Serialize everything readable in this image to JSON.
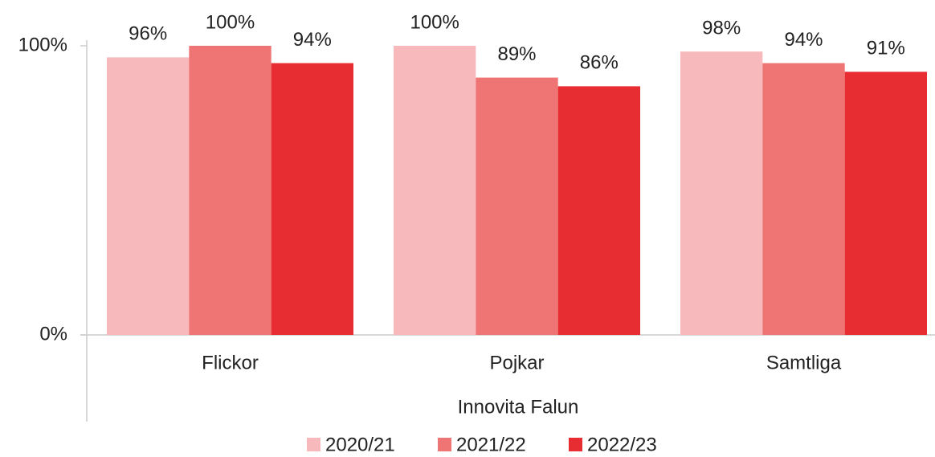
{
  "chart_data": {
    "type": "bar",
    "categories": [
      "Flickor",
      "Pojkar",
      "Samtliga"
    ],
    "xlabel": "Innovita Falun",
    "series": [
      {
        "name": "2020/21",
        "color": "#f7b9bb",
        "values": [
          96,
          100,
          98
        ],
        "value_labels": [
          "96%",
          "100%",
          "98%"
        ]
      },
      {
        "name": "2021/22",
        "color": "#ef7474",
        "values": [
          100,
          89,
          94
        ],
        "value_labels": [
          "100%",
          "89%",
          "94%"
        ]
      },
      {
        "name": "2022/23",
        "color": "#e72d31",
        "values": [
          94,
          86,
          91
        ],
        "value_labels": [
          "94%",
          "86%",
          "91%"
        ]
      }
    ],
    "ylim": [
      0,
      100
    ],
    "yticks": [
      {
        "value": 0,
        "label": "0%"
      },
      {
        "value": 100,
        "label": "100%"
      }
    ],
    "grid": false,
    "legend": "bottom"
  }
}
